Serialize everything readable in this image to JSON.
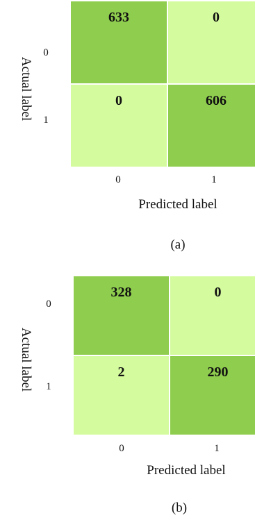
{
  "colors": {
    "high": "#8fcd4e",
    "low": "#d4fb9e",
    "grid": "#ffffff"
  },
  "chart_data": [
    {
      "type": "heatmap",
      "caption": "(a)",
      "xlabel": "Predicted label",
      "ylabel": "Actual label",
      "x_ticks": [
        "0",
        "1"
      ],
      "y_ticks": [
        "0",
        "1"
      ],
      "matrix": [
        [
          633,
          0
        ],
        [
          0,
          606
        ]
      ]
    },
    {
      "type": "heatmap",
      "caption": "(b)",
      "xlabel": "Predicted label",
      "ylabel": "Actual label",
      "x_ticks": [
        "0",
        "1"
      ],
      "y_ticks": [
        "0",
        "1"
      ],
      "matrix": [
        [
          328,
          0
        ],
        [
          2,
          290
        ]
      ]
    }
  ]
}
